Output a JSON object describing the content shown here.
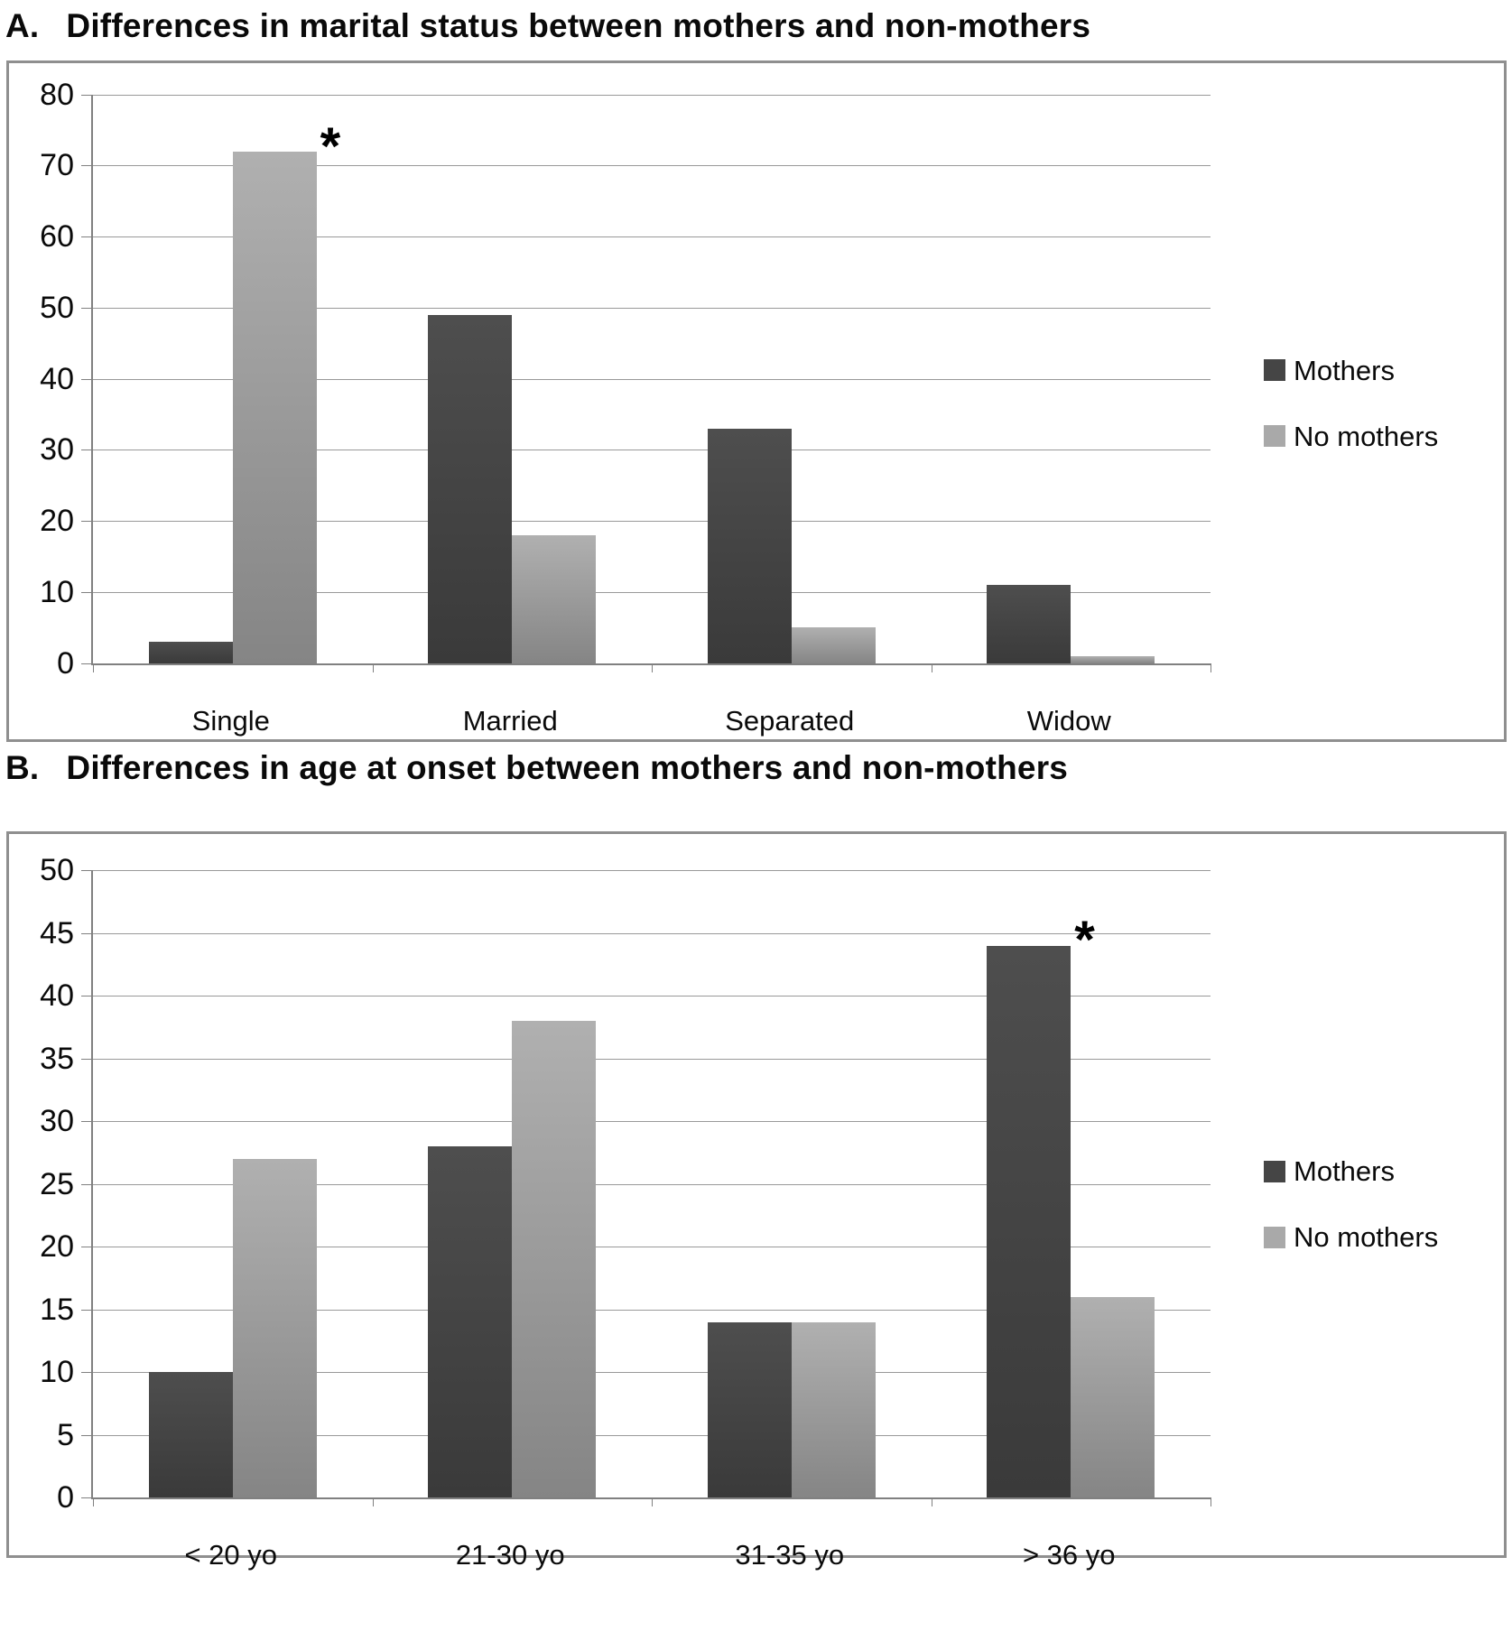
{
  "figure": {
    "panels": [
      {
        "label_prefix": "A.",
        "title": "Differences in marital status between mothers and non-mothers"
      },
      {
        "label_prefix": "B.",
        "title": "Differences in age at onset between mothers and non-mothers"
      }
    ]
  },
  "colors": {
    "mothers_bar_top": "#4e4e4e",
    "mothers_bar_bottom": "#3a3a3a",
    "no_mothers_bar_top": "#b0b0b0",
    "no_mothers_bar_bottom": "#858585",
    "mothers_legend": "#454545",
    "no_mothers_legend": "#a9a9a9",
    "gridline": "#999999",
    "axis": "#808080",
    "chart_border": "#8f8f8f"
  },
  "chart_data": [
    {
      "type": "bar",
      "panel": "A",
      "title": "Differences in marital status between mothers and non-mothers",
      "categories": [
        "Single",
        "Married",
        "Separated",
        "Widow"
      ],
      "series": [
        {
          "name": "Mothers",
          "values": [
            3,
            49,
            33,
            11
          ],
          "color_top": "#4e4e4e",
          "color_bottom": "#3a3a3a",
          "legend_color": "#454545"
        },
        {
          "name": "No mothers",
          "values": [
            72,
            18,
            5,
            1
          ],
          "color_top": "#b0b0b0",
          "color_bottom": "#858585",
          "legend_color": "#a9a9a9"
        }
      ],
      "xlabel": "",
      "ylabel": "",
      "ylim": [
        0,
        80
      ],
      "ytick_step": 10,
      "yticks": [
        "0",
        "10",
        "20",
        "30",
        "40",
        "50",
        "60",
        "70",
        "80"
      ],
      "grid": true,
      "legend_position": "right",
      "annotations": [
        {
          "symbol": "*",
          "category_index": 0,
          "series_index": 1
        }
      ]
    },
    {
      "type": "bar",
      "panel": "B",
      "title": "Differences in age at onset between mothers and non-mothers",
      "categories": [
        "< 20 yo",
        "21-30 yo",
        "31-35 yo",
        "> 36 yo"
      ],
      "series": [
        {
          "name": "Mothers",
          "values": [
            10,
            28,
            14,
            44
          ],
          "color_top": "#4e4e4e",
          "color_bottom": "#3a3a3a",
          "legend_color": "#454545"
        },
        {
          "name": "No mothers",
          "values": [
            27,
            38,
            14,
            16
          ],
          "color_top": "#b0b0b0",
          "color_bottom": "#858585",
          "legend_color": "#a9a9a9"
        }
      ],
      "xlabel": "",
      "ylabel": "",
      "ylim": [
        0,
        50
      ],
      "ytick_step": 5,
      "yticks": [
        "0",
        "5",
        "10",
        "15",
        "20",
        "25",
        "30",
        "35",
        "40",
        "45",
        "50"
      ],
      "grid": true,
      "legend_position": "right",
      "annotations": [
        {
          "symbol": "*",
          "category_index": 3,
          "series_index": 0
        }
      ]
    }
  ]
}
